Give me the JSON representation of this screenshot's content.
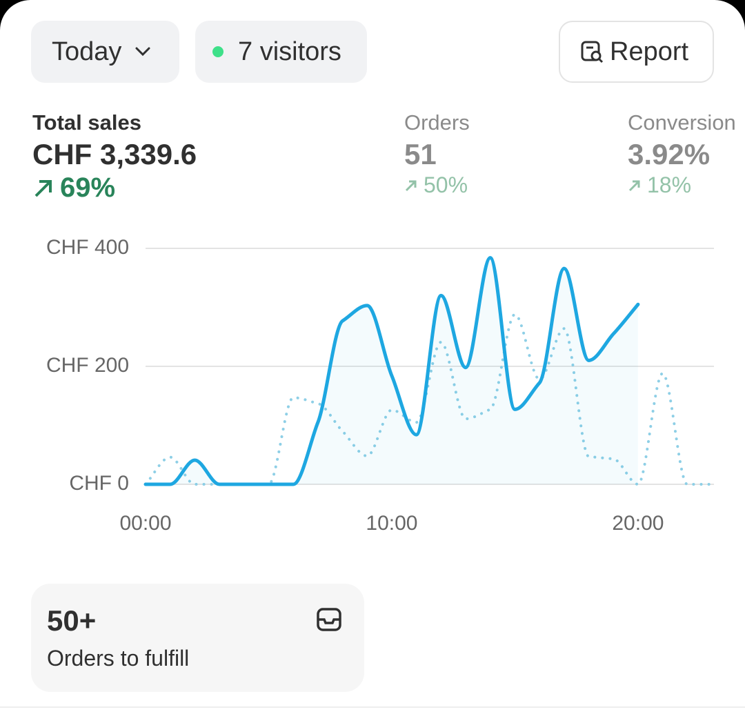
{
  "toolbar": {
    "period": "Today",
    "visitors": "7 visitors",
    "report": "Report"
  },
  "metrics": [
    {
      "label": "Total sales",
      "value": "CHF 3,339.6",
      "change": "69%"
    },
    {
      "label": "Orders",
      "value": "51",
      "change": "50%"
    },
    {
      "label": "Conversion",
      "value": "3.92%",
      "change": "18%"
    }
  ],
  "chart_data": {
    "type": "line",
    "x": [
      0,
      1,
      2,
      3,
      4,
      5,
      6,
      7,
      8,
      9,
      10,
      11,
      12,
      13,
      14,
      15,
      16,
      17,
      18,
      19,
      20,
      21,
      22,
      23
    ],
    "series": [
      {
        "color": "#1ea7e1",
        "values": [
          0,
          0,
          41,
          0,
          0,
          0,
          0,
          105,
          277,
          303,
          184,
          84,
          320,
          198,
          384,
          127,
          172,
          366,
          210,
          255,
          305,
          null,
          null,
          null
        ]
      },
      {
        "color": "#8ecfe6",
        "values": [
          0,
          46,
          0,
          0,
          0,
          0,
          147,
          137,
          90,
          48,
          126,
          105,
          241,
          111,
          127,
          288,
          178,
          264,
          47,
          43,
          0,
          188,
          0,
          0
        ]
      }
    ],
    "xlim": [
      0,
      23
    ],
    "xticks": [
      {
        "value": 0,
        "label": "00:00"
      },
      {
        "value": 10,
        "label": "10:00"
      },
      {
        "value": 20,
        "label": "20:00"
      }
    ],
    "ylim": [
      0,
      400
    ],
    "yticks": [
      {
        "value": 0,
        "label": "CHF 0"
      },
      {
        "value": 200,
        "label": "CHF 200"
      },
      {
        "value": 400,
        "label": "CHF 400"
      }
    ],
    "grid": true
  },
  "card": {
    "value": "50+",
    "label": "Orders to fulfill"
  }
}
